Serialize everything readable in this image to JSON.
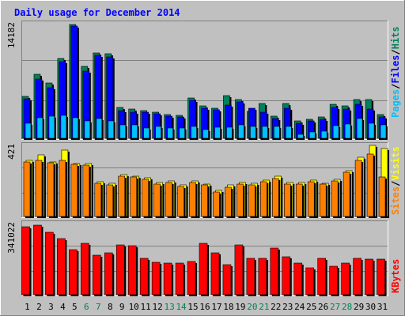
{
  "chart_data": [
    {
      "panel": "hits-files-pages",
      "type": "bar",
      "title": "Daily usage for December 2014",
      "categories": [
        "1",
        "2",
        "3",
        "4",
        "5",
        "6",
        "7",
        "8",
        "9",
        "10",
        "11",
        "12",
        "13",
        "14",
        "15",
        "16",
        "17",
        "18",
        "19",
        "20",
        "21",
        "22",
        "23",
        "24",
        "25",
        "26",
        "27",
        "28",
        "29",
        "30",
        "31"
      ],
      "weekend_days": [
        "6",
        "7",
        "13",
        "14",
        "20",
        "21",
        "27",
        "28"
      ],
      "ymax_label": "14182",
      "ylim": [
        0,
        14182
      ],
      "grid": true,
      "legend": [
        {
          "text": "Pages",
          "color": "#00c0ff"
        },
        {
          "text": "Files",
          "color": "#0000ff"
        },
        {
          "text": "Hits",
          "color": "#00805c"
        }
      ],
      "series": [
        {
          "name": "Hits",
          "color": "#00805c",
          "values": [
            5200,
            7900,
            6800,
            9900,
            14100,
            8900,
            10600,
            10500,
            3800,
            3600,
            3400,
            3200,
            2900,
            2800,
            5000,
            4000,
            3700,
            5300,
            4800,
            3300,
            4300,
            2700,
            4300,
            2200,
            2300,
            2600,
            4200,
            4000,
            4800,
            4800,
            2900
          ]
        },
        {
          "name": "Files",
          "color": "#0000ff",
          "values": [
            4900,
            7300,
            6300,
            9500,
            13900,
            8300,
            10300,
            10100,
            3400,
            3200,
            3200,
            3000,
            2700,
            2600,
            4700,
            3700,
            3500,
            4100,
            4500,
            3700,
            3200,
            2400,
            3700,
            1900,
            2200,
            2300,
            3800,
            3600,
            4200,
            3600,
            2600
          ]
        },
        {
          "name": "Pages",
          "color": "#00c0ff",
          "values": [
            1900,
            2500,
            2700,
            2800,
            2500,
            2200,
            2400,
            2200,
            1700,
            1700,
            1300,
            1500,
            1300,
            1300,
            1500,
            1100,
            1400,
            1400,
            1700,
            1500,
            1500,
            1500,
            1500,
            500,
            800,
            900,
            1600,
            1800,
            2400,
            1900,
            1700
          ]
        }
      ]
    },
    {
      "panel": "visits-sites",
      "type": "bar",
      "ymax_label": "421",
      "ylim": [
        0,
        421
      ],
      "grid": true,
      "legend": [
        {
          "text": "Sites",
          "color": "#ff8000"
        },
        {
          "text": "Visits",
          "color": "#ffff00"
        }
      ],
      "series": [
        {
          "name": "Visits",
          "color": "#ffff00",
          "values": [
            330,
            365,
            325,
            395,
            315,
            315,
            205,
            195,
            250,
            240,
            230,
            200,
            210,
            185,
            210,
            190,
            155,
            185,
            200,
            195,
            215,
            240,
            200,
            200,
            215,
            195,
            220,
            270,
            350,
            420,
            400
          ]
        },
        {
          "name": "Sites",
          "color": "#ff8000",
          "values": [
            325,
            330,
            320,
            330,
            310,
            305,
            195,
            185,
            240,
            235,
            220,
            190,
            200,
            180,
            200,
            185,
            145,
            175,
            190,
            185,
            205,
            225,
            190,
            190,
            205,
            190,
            210,
            260,
            330,
            370,
            235
          ]
        }
      ]
    },
    {
      "panel": "kbytes",
      "type": "bar",
      "ymax_label": "341022",
      "ylim": [
        0,
        341022
      ],
      "grid": true,
      "legend": [
        {
          "text": "KBytes",
          "color": "#ff0000"
        }
      ],
      "series": [
        {
          "name": "KBytes",
          "color": "#ff0000",
          "values": [
            325000,
            335000,
            300000,
            270000,
            215000,
            245000,
            190000,
            200000,
            240000,
            235000,
            175000,
            155000,
            150000,
            150000,
            160000,
            245000,
            200000,
            145000,
            240000,
            175000,
            175000,
            225000,
            180000,
            150000,
            130000,
            175000,
            135000,
            150000,
            175000,
            170000,
            170000
          ]
        }
      ]
    }
  ]
}
